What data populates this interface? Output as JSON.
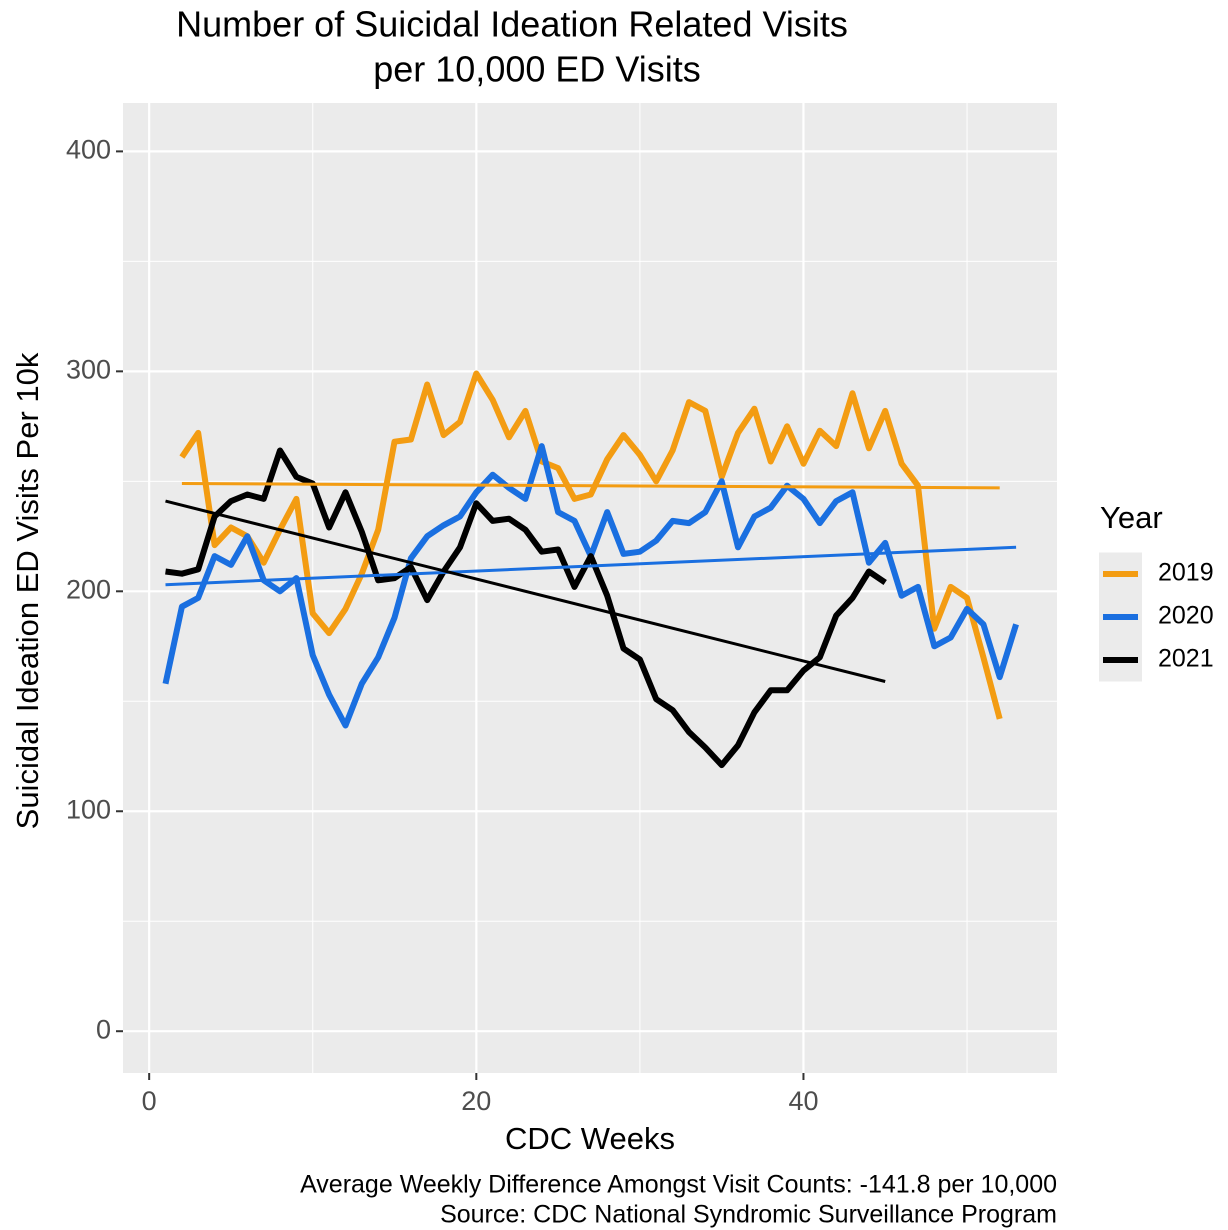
{
  "chart_data": {
    "type": "line",
    "title": [
      "Number of Suicidal Ideation Related Visits",
      "per 10,000 ED Visits"
    ],
    "x_label": "CDC Weeks",
    "y_label": "Suicidal Ideation ED Visits Per 10k",
    "caption": [
      "Average Weekly Difference Amongst Visit Counts: -141.8 per 10,000",
      "Source: CDC National Syndromic Surveillance Program"
    ],
    "legend_title": "Year",
    "xlim": [
      -1.6,
      55.5
    ],
    "xticks": [
      0,
      20,
      40
    ],
    "ylim": [
      -19,
      422
    ],
    "yticks": [
      0,
      100,
      200,
      300,
      400
    ],
    "grid": true,
    "minor_grid": true,
    "series": [
      {
        "name": "2019",
        "color": "#f39c12",
        "x": [
          2,
          3,
          4,
          5,
          6,
          7,
          8,
          9,
          10,
          11,
          12,
          13,
          14,
          15,
          16,
          17,
          18,
          19,
          20,
          21,
          22,
          23,
          24,
          25,
          26,
          27,
          28,
          29,
          30,
          31,
          32,
          33,
          34,
          35,
          36,
          37,
          38,
          39,
          40,
          41,
          42,
          43,
          44,
          45,
          46,
          47,
          48,
          49,
          50,
          51,
          52
        ],
        "values": [
          261,
          272,
          221,
          229,
          225,
          213,
          228,
          242,
          190,
          181,
          192,
          208,
          228,
          268,
          269,
          294,
          271,
          277,
          299,
          287,
          270,
          282,
          259,
          256,
          242,
          244,
          260,
          271,
          262,
          250,
          264,
          286,
          282,
          252,
          272,
          283,
          259,
          275,
          258,
          273,
          266,
          290,
          265,
          282,
          258,
          248,
          183,
          202,
          197,
          170,
          142
        ],
        "trend": {
          "x": [
            2,
            52
          ],
          "values": [
            249,
            247
          ]
        }
      },
      {
        "name": "2020",
        "color": "#1a6fe0",
        "x": [
          1,
          2,
          3,
          4,
          5,
          6,
          7,
          8,
          9,
          10,
          11,
          12,
          13,
          14,
          15,
          16,
          17,
          18,
          19,
          20,
          21,
          22,
          23,
          24,
          25,
          26,
          27,
          28,
          29,
          30,
          31,
          32,
          33,
          34,
          35,
          36,
          37,
          38,
          39,
          40,
          41,
          42,
          43,
          44,
          45,
          46,
          47,
          48,
          49,
          50,
          51,
          52,
          53
        ],
        "values": [
          158,
          193,
          197,
          216,
          212,
          225,
          205,
          200,
          206,
          171,
          153,
          139,
          158,
          170,
          188,
          215,
          225,
          230,
          234,
          245,
          253,
          247,
          242,
          266,
          236,
          232,
          216,
          236,
          217,
          218,
          223,
          232,
          231,
          236,
          250,
          220,
          234,
          238,
          248,
          242,
          231,
          241,
          245,
          213,
          222,
          198,
          202,
          175,
          179,
          192,
          185,
          161,
          185
        ],
        "trend": {
          "x": [
            1,
            53
          ],
          "values": [
            203,
            220
          ]
        }
      },
      {
        "name": "2021",
        "color": "#000000",
        "x": [
          1,
          2,
          3,
          4,
          5,
          6,
          7,
          8,
          9,
          10,
          11,
          12,
          13,
          14,
          15,
          16,
          17,
          18,
          19,
          20,
          21,
          22,
          23,
          24,
          25,
          26,
          27,
          28,
          29,
          30,
          31,
          32,
          33,
          34,
          35,
          36,
          37,
          38,
          39,
          40,
          41,
          42,
          43,
          44,
          45
        ],
        "values": [
          209,
          208,
          210,
          234,
          241,
          244,
          242,
          264,
          252,
          249,
          229,
          245,
          227,
          205,
          206,
          211,
          196,
          209,
          220,
          240,
          232,
          233,
          228,
          218,
          219,
          202,
          216,
          198,
          174,
          169,
          151,
          146,
          136,
          129,
          121,
          130,
          145,
          155,
          155,
          164,
          170,
          189,
          197,
          209,
          204
        ],
        "trend": {
          "x": [
            1,
            45
          ],
          "values": [
            241,
            159
          ]
        }
      }
    ]
  }
}
